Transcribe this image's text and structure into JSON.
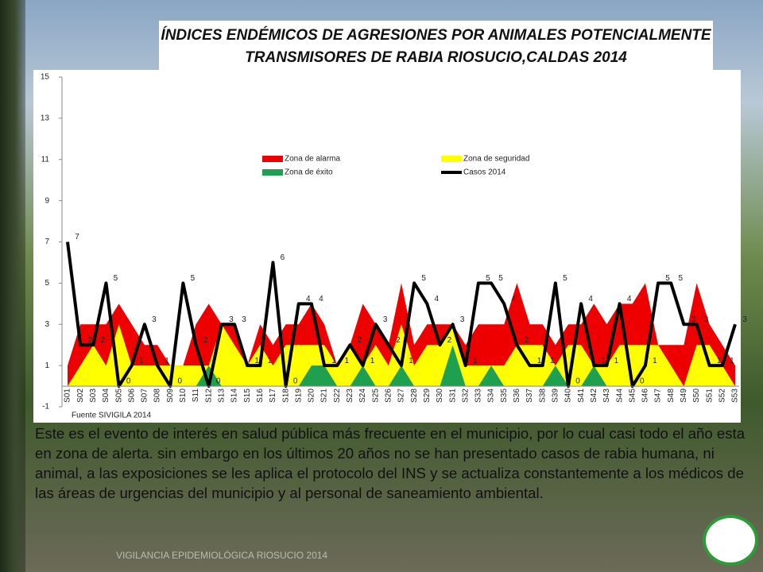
{
  "chart_data": {
    "type": "area-line",
    "title": "ÍNDICES ENDÉMICOS DE AGRESIONES POR ANIMALES POTENCIALMENTE TRANSMISORES DE RABIA RIOSUCIO,CALDAS 2014",
    "source": "Fuente SIVIGILA 2014",
    "categories": [
      "S01",
      "S02",
      "S03",
      "S04",
      "S05",
      "S06",
      "S07",
      "S08",
      "S09",
      "S10",
      "S11",
      "S12",
      "S13",
      "S14",
      "S15",
      "S16",
      "S17",
      "S18",
      "S19",
      "S20",
      "S21",
      "S22",
      "S23",
      "S24",
      "S25",
      "S26",
      "S27",
      "S28",
      "S29",
      "S30",
      "S31",
      "S32",
      "S33",
      "S34",
      "S35",
      "S36",
      "S37",
      "S38",
      "S39",
      "S40",
      "S41",
      "S42",
      "S43",
      "S44",
      "S45",
      "S46",
      "S47",
      "S48",
      "S49",
      "S50",
      "S51",
      "S52",
      "S53"
    ],
    "series": [
      {
        "name": "Zona de alarma",
        "color": "#ee0000",
        "kind": "area",
        "values": [
          1,
          3,
          3,
          3,
          4,
          3,
          2,
          2,
          1,
          1,
          3,
          4,
          3,
          3,
          1,
          3,
          2,
          3,
          3,
          4,
          3,
          1,
          2,
          4,
          3,
          2,
          5,
          2,
          3,
          3,
          3,
          2,
          3,
          3,
          3,
          5,
          3,
          3,
          2,
          3,
          3,
          4,
          3,
          4,
          4,
          5,
          2,
          2,
          2,
          5,
          3,
          2,
          1
        ]
      },
      {
        "name": "Zona de seguridad",
        "color": "#ffff00",
        "kind": "area",
        "values": [
          0,
          1,
          2,
          1,
          3,
          1,
          1,
          1,
          1,
          1,
          1,
          1,
          3,
          2,
          1,
          2,
          1,
          2,
          2,
          2,
          2,
          1,
          2,
          1,
          2,
          1,
          3,
          1,
          2,
          2,
          3,
          1,
          1,
          1,
          1,
          2,
          2,
          2,
          1,
          2,
          2,
          1,
          1,
          2,
          2,
          2,
          2,
          1,
          0,
          2,
          2,
          1,
          0
        ]
      },
      {
        "name": "Zona de éxito",
        "color": "#1fa050",
        "kind": "area",
        "values": [
          0,
          0,
          0,
          0,
          0,
          0,
          0,
          0,
          0,
          0,
          0,
          1,
          0,
          0,
          0,
          0,
          0,
          0,
          0,
          1,
          1,
          0,
          0,
          1,
          0,
          0,
          1,
          0,
          0,
          0,
          2,
          0,
          0,
          1,
          0,
          0,
          0,
          0,
          1,
          0,
          0,
          1,
          0,
          0,
          0,
          0,
          0,
          0,
          0,
          0,
          0,
          0,
          0
        ]
      },
      {
        "name": "Casos 2014",
        "color": "#000000",
        "kind": "line",
        "values": [
          7,
          2,
          2,
          5,
          0,
          1,
          3,
          1,
          0,
          5,
          2,
          0,
          3,
          3,
          1,
          1,
          6,
          0,
          4,
          4,
          1,
          1,
          2,
          1,
          3,
          2,
          1,
          5,
          4,
          2,
          3,
          1,
          5,
          5,
          4,
          2,
          1,
          1,
          5,
          0,
          4,
          1,
          1,
          4,
          0,
          1,
          5,
          5,
          3,
          3,
          1,
          1,
          3
        ]
      }
    ],
    "ylim": [
      -1,
      15
    ],
    "yticks": [
      -1,
      1,
      3,
      5,
      7,
      9,
      11,
      13,
      15
    ],
    "legend": "top"
  },
  "paragraph": "Este es el evento de interés en salud pública  más frecuente en el municipio, por lo cual casi todo el año esta en zona de alerta. sin embargo  en los últimos 20 años no se han presentado casos de rabia humana, ni animal, a las exposiciones se les aplica el protocolo del INS y se actualiza constantemente a los médicos de las áreas de urgencias del municipio y al personal de saneamiento ambiental.",
  "footer": "VIGILANCIA EPIDEMIOLÓGICA RIOSUCIO 2014"
}
